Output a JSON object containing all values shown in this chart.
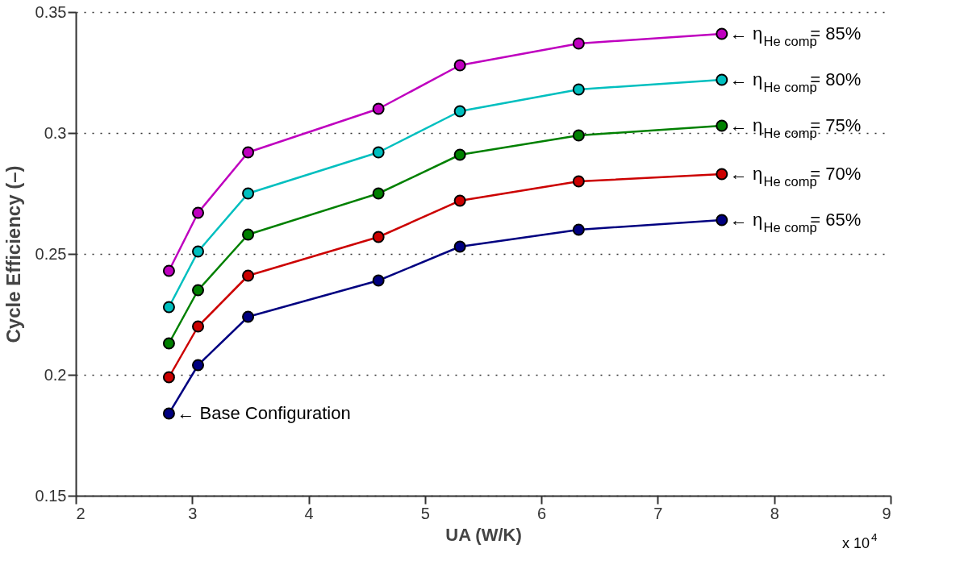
{
  "chart_data": {
    "type": "line",
    "xlabel": "UA (W/K)",
    "ylabel": "Cycle Efficiency (–)",
    "x": [
      2.8,
      3.05,
      3.48,
      4.6,
      5.3,
      6.32,
      7.55
    ],
    "series": [
      {
        "name": "← η$_{He comp}$= 85%",
        "color": "#bf00bf",
        "values": [
          0.243,
          0.267,
          0.292,
          0.31,
          0.328,
          0.337,
          0.341
        ]
      },
      {
        "name": "← η$_{He comp}$= 80%",
        "color": "#00bfbf",
        "values": [
          0.228,
          0.251,
          0.275,
          0.292,
          0.309,
          0.318,
          0.322
        ]
      },
      {
        "name": "← η$_{He comp}$= 75%",
        "color": "#008000",
        "values": [
          0.213,
          0.235,
          0.258,
          0.275,
          0.291,
          0.299,
          0.303
        ]
      },
      {
        "name": "← η$_{He comp}$= 70%",
        "color": "#cc0000",
        "values": [
          0.199,
          0.22,
          0.241,
          0.257,
          0.272,
          0.28,
          0.283
        ]
      },
      {
        "name": "← η$_{He comp}$= 65%",
        "color": "#000080",
        "values": [
          0.184,
          0.204,
          0.224,
          0.239,
          0.253,
          0.26,
          0.264
        ]
      }
    ],
    "xlim": [
      2,
      9
    ],
    "xticks": [
      2,
      3,
      4,
      5,
      6,
      7,
      8,
      9
    ],
    "ylim": [
      0.15,
      0.35
    ],
    "yticks": [
      0.15,
      0.2,
      0.25,
      0.3,
      0.35
    ],
    "grid": "y",
    "marker": "circle",
    "line_style": "solid",
    "annotations": [
      {
        "text": "← Base Configuration",
        "x": 2.8,
        "y": 0.184
      },
      "x 10$^{4}$"
    ]
  }
}
